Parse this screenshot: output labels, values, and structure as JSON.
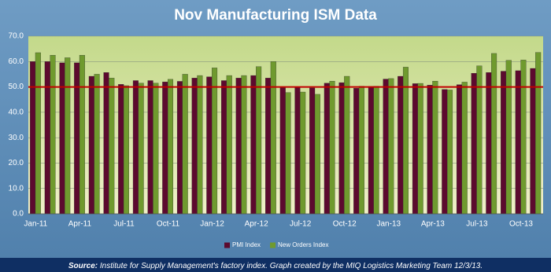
{
  "chart_data": {
    "type": "bar",
    "title": "Nov Manufacturing ISM Data",
    "categories": [
      "Jan-11",
      null,
      null,
      "Apr-11",
      null,
      null,
      "Jul-11",
      null,
      null,
      "Oct-11",
      null,
      null,
      "Jan-12",
      null,
      null,
      "Apr-12",
      null,
      null,
      "Jul-12",
      null,
      null,
      "Oct-12",
      null,
      null,
      "Jan-13",
      null,
      null,
      "Apr-13",
      null,
      null,
      "Jul-13",
      null,
      null,
      "Oct-13",
      null
    ],
    "series": [
      {
        "name": "PMI Index",
        "color": "#5c0a2e",
        "values": [
          60,
          60,
          59.5,
          59.5,
          54.2,
          55.7,
          51,
          52.5,
          52.5,
          52,
          52.2,
          53.5,
          54,
          52.5,
          53.5,
          54.5,
          53.5,
          49.7,
          49.8,
          49.6,
          51.5,
          51.7,
          49.5,
          50.2,
          53.1,
          54.2,
          51.3,
          50.7,
          49,
          50.9,
          55.4,
          55.7,
          56.2,
          56.4,
          57.3
        ]
      },
      {
        "name": "New Orders Index",
        "color": "#6f9a2e",
        "values": [
          63.5,
          62.5,
          61.5,
          62.5,
          55,
          53.5,
          50.5,
          51.5,
          51.5,
          53,
          55,
          54.5,
          57.5,
          54.5,
          54.5,
          58,
          60,
          47.8,
          48,
          47.1,
          52.3,
          54.2,
          50.3,
          50.3,
          53.3,
          57.8,
          51.4,
          52.3,
          48.8,
          51.9,
          58.3,
          63.2,
          60.5,
          60.6,
          63.6
        ]
      }
    ],
    "ylim": [
      0,
      70
    ],
    "yticks": [
      {
        "value": 0,
        "label": "0.0"
      },
      {
        "value": 10,
        "label": "10.0"
      },
      {
        "value": 20,
        "label": "20.0"
      },
      {
        "value": 30,
        "label": "30.0"
      },
      {
        "value": 40,
        "label": "40.0"
      },
      {
        "value": 50,
        "label": "50.0"
      },
      {
        "value": 60,
        "label": "60.0"
      },
      {
        "value": 70,
        "label": "70.0"
      }
    ],
    "grid": true,
    "reference_line": {
      "value": 50,
      "color": "#c00000"
    },
    "legend": "bottom"
  },
  "footer": {
    "source_label": "Source:",
    "source_text": "Institute for Supply Management's factory index. Graph created by the MIQ Logistics Marketing Team 12/3/13."
  }
}
